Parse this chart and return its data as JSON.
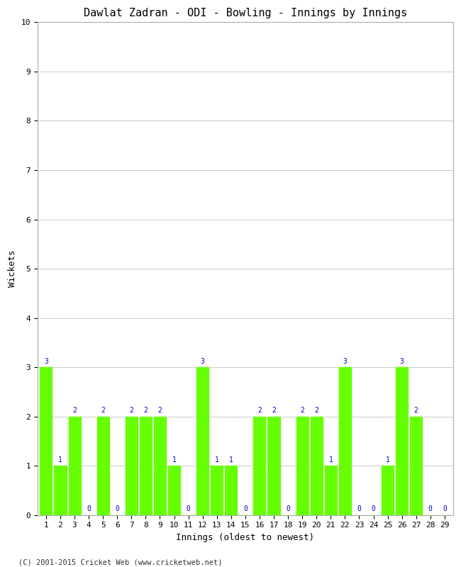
{
  "title": "Dawlat Zadran - ODI - Bowling - Innings by Innings",
  "xlabel": "Innings (oldest to newest)",
  "ylabel": "Wickets",
  "innings": [
    1,
    2,
    3,
    4,
    5,
    6,
    7,
    8,
    9,
    10,
    11,
    12,
    13,
    14,
    15,
    16,
    17,
    18,
    19,
    20,
    21,
    22,
    23,
    24,
    25,
    26,
    27,
    28,
    29
  ],
  "wickets": [
    3,
    1,
    2,
    0,
    2,
    0,
    2,
    2,
    2,
    1,
    0,
    3,
    1,
    1,
    0,
    2,
    2,
    0,
    2,
    2,
    1,
    3,
    0,
    0,
    1,
    3,
    2,
    0,
    0
  ],
  "bar_color": "#66ff00",
  "label_color": "#0000cc",
  "background_color": "#ffffff",
  "grid_color": "#cccccc",
  "ylim": [
    0,
    10
  ],
  "yticks": [
    0,
    1,
    2,
    3,
    4,
    5,
    6,
    7,
    8,
    9,
    10
  ],
  "title_fontsize": 11,
  "axis_label_fontsize": 9,
  "tick_fontsize": 8,
  "label_fontsize": 7,
  "footer": "(C) 2001-2015 Cricket Web (www.cricketweb.net)"
}
